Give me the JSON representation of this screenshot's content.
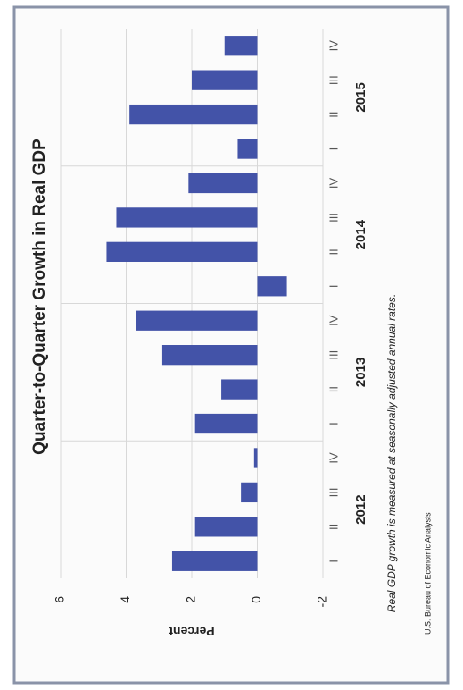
{
  "chart_data": {
    "type": "bar",
    "title": "Quarter-to-Quarter Growth in Real GDP",
    "y_label": "Percent",
    "categories": [
      "I",
      "II",
      "III",
      "IV",
      "I",
      "II",
      "III",
      "IV",
      "I",
      "II",
      "III",
      "IV",
      "I",
      "II",
      "III",
      "IV"
    ],
    "years": [
      "2012",
      "2013",
      "2014",
      "2015"
    ],
    "values": [
      2.6,
      1.9,
      0.5,
      0.1,
      1.9,
      1.1,
      2.9,
      3.7,
      -0.9,
      4.6,
      4.3,
      2.1,
      0.6,
      3.9,
      2.0,
      1.0
    ],
    "color": "#4353a8",
    "ylim": [
      -2,
      6
    ],
    "yticks": [
      -2,
      0,
      2,
      4,
      6
    ],
    "grid": true,
    "note": "Real GDP growth is measured at seasonally adjusted annual rates.",
    "source": "U.S. Bureau of Economic Analysis"
  }
}
